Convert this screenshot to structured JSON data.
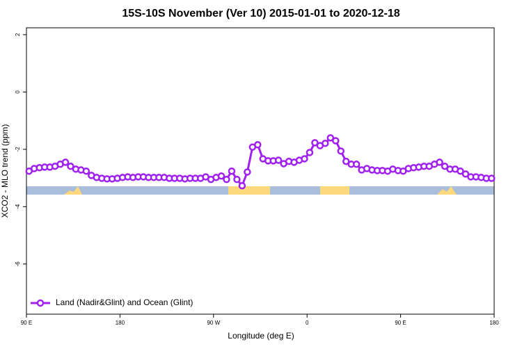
{
  "chart_data": {
    "type": "line",
    "title": "15S-10S November (Ver 10)   2015-01-01 to 2020-12-18",
    "x_label": "Longitude (deg E)",
    "y_label": "XCO2 - MLO trend (ppm)",
    "xlim": [
      90,
      540
    ],
    "xticks": [
      {
        "value": 90,
        "label": "90 E"
      },
      180,
      {
        "value": 270,
        "label": "90 W"
      },
      {
        "value": 360,
        "label": "0"
      },
      {
        "value": 450,
        "label": "90 E"
      },
      {
        "value": 540,
        "label": "180"
      }
    ],
    "ylim": [
      -7.75,
      2.24
    ],
    "yticks": [
      -6,
      -4,
      -2,
      0,
      2
    ],
    "grid": false,
    "legend": "bottom-left",
    "x": [
      92.5,
      97.5,
      102.5,
      107.5,
      112.5,
      117.5,
      122.5,
      127.5,
      132.5,
      137.5,
      142.5,
      147.5,
      152.5,
      157.5,
      162.5,
      167.5,
      172.5,
      177.5,
      182.5,
      187.5,
      192.5,
      197.5,
      202.5,
      207.5,
      212.5,
      217.5,
      222.5,
      227.5,
      232.5,
      237.5,
      242.5,
      247.5,
      252.5,
      257.5,
      262.5,
      267.5,
      272.5,
      277.5,
      282.5,
      287.5,
      292.5,
      297.5,
      302.5,
      307.5,
      312.5,
      317.5,
      322.5,
      327.5,
      332.5,
      337.5,
      342.5,
      347.5,
      352.5,
      357.5,
      362.5,
      367.5,
      372.5,
      377.5,
      382.5,
      387.5,
      392.5,
      397.5,
      402.5,
      407.5,
      412.5,
      417.5,
      422.5,
      427.5,
      432.5,
      437.5,
      442.5,
      447.5,
      452.5,
      457.5,
      462.5,
      467.5,
      472.5,
      477.5,
      482.5,
      487.5,
      492.5,
      497.5,
      502.5,
      507.5,
      512.5,
      517.5,
      522.5,
      527.5,
      532.5,
      537.5
    ],
    "series": [
      {
        "name": "Land (Nadir&Glint) and Ocean (Glint)",
        "color": "#a020f0",
        "values": [
          -2.76,
          -2.67,
          -2.64,
          -2.62,
          -2.62,
          -2.59,
          -2.52,
          -2.45,
          -2.59,
          -2.69,
          -2.72,
          -2.76,
          -2.91,
          -2.98,
          -3.01,
          -3.03,
          -3.03,
          -3.01,
          -2.98,
          -2.96,
          -2.98,
          -2.96,
          -2.96,
          -2.98,
          -2.98,
          -2.98,
          -2.98,
          -3.01,
          -3.01,
          -3.01,
          -3.03,
          -3.01,
          -3.01,
          -3.01,
          -2.96,
          -3.05,
          -2.98,
          -2.93,
          -3.05,
          -2.76,
          -3.05,
          -3.27,
          -2.79,
          -1.92,
          -1.84,
          -2.33,
          -2.4,
          -2.4,
          -2.38,
          -2.5,
          -2.42,
          -2.45,
          -2.38,
          -2.33,
          -2.11,
          -1.77,
          -1.87,
          -1.79,
          -1.6,
          -1.7,
          -2.06,
          -2.42,
          -2.52,
          -2.52,
          -2.72,
          -2.67,
          -2.72,
          -2.74,
          -2.74,
          -2.76,
          -2.69,
          -2.74,
          -2.76,
          -2.67,
          -2.64,
          -2.62,
          -2.59,
          -2.59,
          -2.52,
          -2.45,
          -2.59,
          -2.69,
          -2.69,
          -2.76,
          -2.86,
          -2.96,
          -2.96,
          -2.98,
          -3.01,
          -3.01
        ]
      }
    ]
  }
}
